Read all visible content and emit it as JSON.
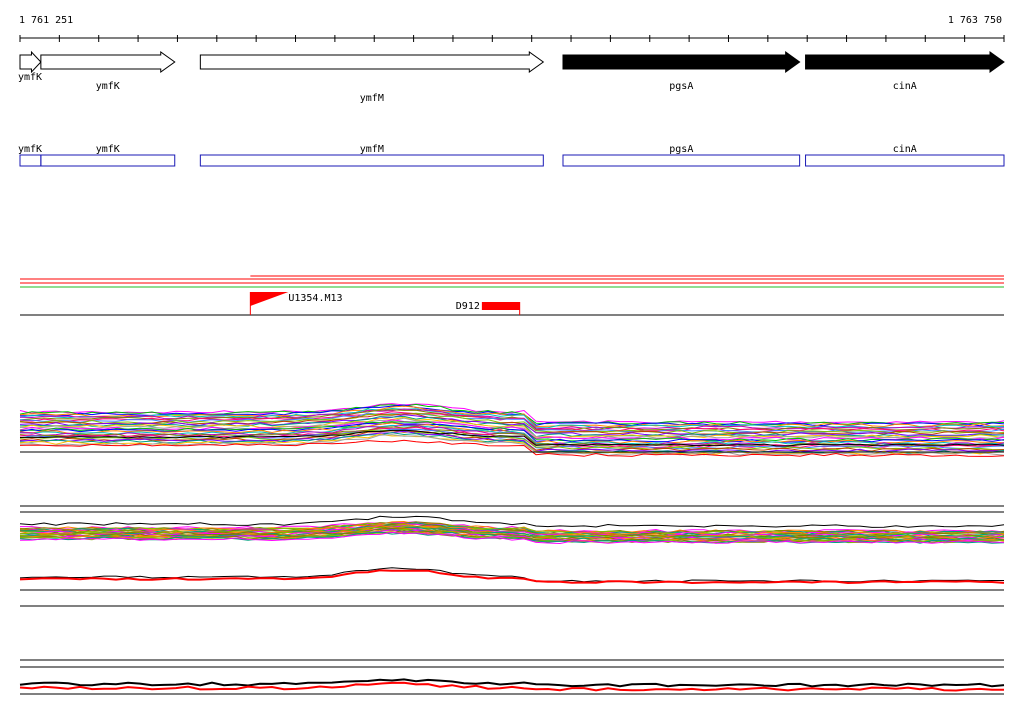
{
  "ruler": {
    "start_label": "1 761 251",
    "end_label": "1 763 750",
    "start": 1761251,
    "end": 1763750
  },
  "genes": [
    {
      "name": "ymfK",
      "start": 1761251,
      "end": 1761304,
      "strand": "+",
      "fill": "#ffffff",
      "label_row": "top"
    },
    {
      "name": "ymfK",
      "start": 1761304,
      "end": 1761644,
      "strand": "+",
      "fill": "#ffffff",
      "label_row": "low"
    },
    {
      "name": "ymfM",
      "start": 1761709,
      "end": 1762580,
      "strand": "+",
      "fill": "#ffffff",
      "label_row": "lower"
    },
    {
      "name": "pgsA",
      "start": 1762630,
      "end": 1763231,
      "strand": "+",
      "fill": "#000000",
      "label_row": "low"
    },
    {
      "name": "cinA",
      "start": 1763246,
      "end": 1763750,
      "strand": "+",
      "fill": "#000000",
      "label_row": "low"
    }
  ],
  "cds_boxes": [
    {
      "name": "ymfK",
      "start": 1761251,
      "end": 1761304
    },
    {
      "name": "ymfK",
      "start": 1761304,
      "end": 1761644
    },
    {
      "name": "ymfM",
      "start": 1761709,
      "end": 1762580
    },
    {
      "name": "pgsA",
      "start": 1762630,
      "end": 1763231
    },
    {
      "name": "cinA",
      "start": 1763246,
      "end": 1763750
    }
  ],
  "features": [
    {
      "name": "U1354.M13",
      "type": "flag",
      "position": 1761836,
      "color": "#ff0000"
    },
    {
      "name": "D912",
      "type": "block",
      "start": 1762424,
      "end": 1762520,
      "color": "#ff0000"
    }
  ],
  "colors": {
    "red": "#ff0000",
    "green": "#22bb22",
    "blue": "#1a1ab5",
    "palette": [
      "#ff00ff",
      "#00c000",
      "#0000ff",
      "#ff8000",
      "#00c0c0",
      "#c000c0",
      "#808000",
      "#ff0080",
      "#4080ff",
      "#80c000",
      "#c04000",
      "#8000ff",
      "#00a080",
      "#ffc000",
      "#a0a0a0"
    ]
  }
}
